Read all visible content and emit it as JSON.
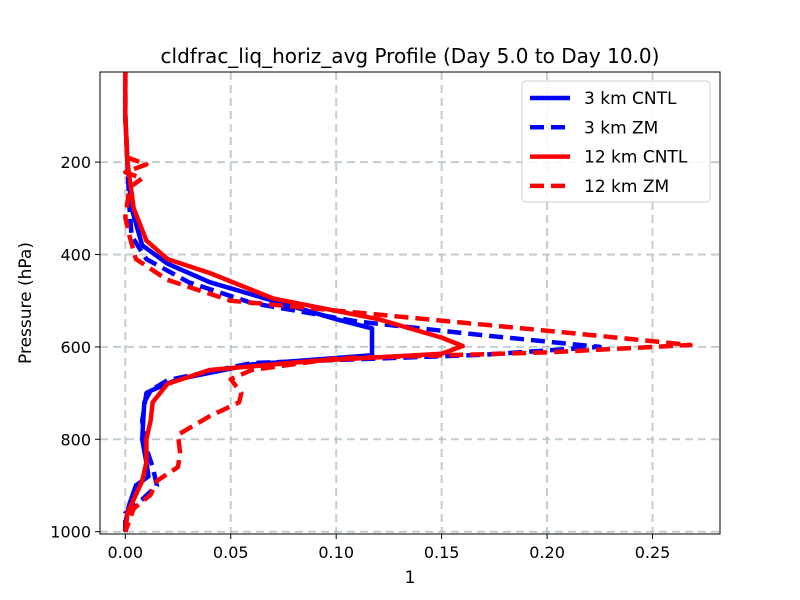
{
  "chart_data": {
    "type": "line",
    "title": "cldfrac_liq_horiz_avg Profile (Day 5.0 to Day 10.0)",
    "xlabel": "1",
    "ylabel": "Pressure (hPa)",
    "xlim": [
      -0.012,
      0.282
    ],
    "ylim": [
      1005,
      5
    ],
    "y_inverted": true,
    "grid": true,
    "legend_position": "top-right",
    "xticks": [
      0.0,
      0.05,
      0.1,
      0.15,
      0.2,
      0.25
    ],
    "xtick_labels": [
      "0.00",
      "0.05",
      "0.10",
      "0.15",
      "0.20",
      "0.25"
    ],
    "yticks": [
      200,
      400,
      600,
      800,
      1000
    ],
    "ytick_labels": [
      "200",
      "400",
      "600",
      "800",
      "1000"
    ],
    "series": [
      {
        "name": "3 km CNTL",
        "color": "#0000ff",
        "style": "solid",
        "points": [
          [
            0.0,
            5
          ],
          [
            0.0,
            100
          ],
          [
            0.001,
            200
          ],
          [
            0.003,
            300
          ],
          [
            0.008,
            380
          ],
          [
            0.02,
            420
          ],
          [
            0.04,
            460
          ],
          [
            0.07,
            500
          ],
          [
            0.1,
            540
          ],
          [
            0.117,
            560
          ],
          [
            0.117,
            618
          ],
          [
            0.06,
            638
          ],
          [
            0.025,
            670
          ],
          [
            0.012,
            695
          ],
          [
            0.009,
            720
          ],
          [
            0.008,
            800
          ],
          [
            0.01,
            850
          ],
          [
            0.011,
            880
          ],
          [
            0.005,
            900
          ],
          [
            0.002,
            940
          ],
          [
            0.0,
            980
          ],
          [
            0.0,
            1000
          ]
        ]
      },
      {
        "name": "3 km ZM",
        "color": "#0000ff",
        "style": "dashed",
        "points": [
          [
            0.0,
            5
          ],
          [
            0.0,
            100
          ],
          [
            0.001,
            200
          ],
          [
            0.002,
            300
          ],
          [
            0.003,
            360
          ],
          [
            0.01,
            410
          ],
          [
            0.03,
            460
          ],
          [
            0.06,
            505
          ],
          [
            0.11,
            545
          ],
          [
            0.17,
            575
          ],
          [
            0.225,
            600
          ],
          [
            0.17,
            617
          ],
          [
            0.06,
            635
          ],
          [
            0.02,
            672
          ],
          [
            0.01,
            700
          ],
          [
            0.008,
            760
          ],
          [
            0.01,
            820
          ],
          [
            0.013,
            860
          ],
          [
            0.015,
            900
          ],
          [
            0.008,
            930
          ],
          [
            0.0,
            960
          ],
          [
            0.0,
            1000
          ]
        ]
      },
      {
        "name": "12 km CNTL",
        "color": "#ff0000",
        "style": "solid",
        "points": [
          [
            0.0,
            5
          ],
          [
            0.0,
            100
          ],
          [
            0.001,
            200
          ],
          [
            0.004,
            300
          ],
          [
            0.01,
            370
          ],
          [
            0.02,
            410
          ],
          [
            0.04,
            440
          ],
          [
            0.07,
            495
          ],
          [
            0.12,
            540
          ],
          [
            0.15,
            580
          ],
          [
            0.16,
            598
          ],
          [
            0.15,
            615
          ],
          [
            0.09,
            630
          ],
          [
            0.04,
            650
          ],
          [
            0.02,
            680
          ],
          [
            0.013,
            720
          ],
          [
            0.012,
            760
          ],
          [
            0.01,
            800
          ],
          [
            0.01,
            850
          ],
          [
            0.008,
            890
          ],
          [
            0.005,
            920
          ],
          [
            0.001,
            960
          ],
          [
            0.0,
            1000
          ]
        ]
      },
      {
        "name": "12 km ZM",
        "color": "#ff0000",
        "style": "dashed",
        "points": [
          [
            0.0,
            5
          ],
          [
            0.0,
            100
          ],
          [
            0.001,
            190
          ],
          [
            0.01,
            205
          ],
          [
            0.0,
            222
          ],
          [
            0.008,
            235
          ],
          [
            0.002,
            255
          ],
          [
            0.0,
            320
          ],
          [
            0.002,
            360
          ],
          [
            0.005,
            410
          ],
          [
            0.02,
            455
          ],
          [
            0.05,
            500
          ],
          [
            0.12,
            530
          ],
          [
            0.2,
            565
          ],
          [
            0.268,
            596
          ],
          [
            0.2,
            612
          ],
          [
            0.1,
            625
          ],
          [
            0.06,
            650
          ],
          [
            0.05,
            670
          ],
          [
            0.055,
            700
          ],
          [
            0.054,
            720
          ],
          [
            0.04,
            750
          ],
          [
            0.025,
            790
          ],
          [
            0.026,
            830
          ],
          [
            0.025,
            860
          ],
          [
            0.015,
            890
          ],
          [
            0.012,
            920
          ],
          [
            0.004,
            950
          ],
          [
            0.0,
            1000
          ]
        ]
      }
    ]
  }
}
